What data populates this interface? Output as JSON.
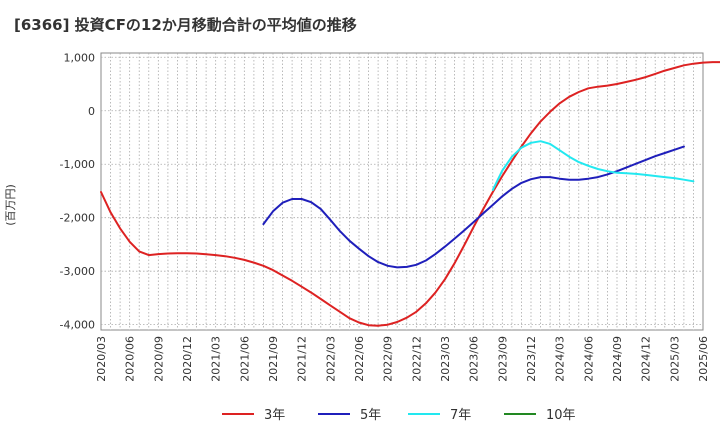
{
  "chart_data": {
    "type": "line",
    "title": "[6366]  投資CFの12か月移動合計の平均値の推移",
    "ylabel": "(百万円)",
    "xlabel": "",
    "ylim": [
      -4100,
      1080
    ],
    "yticks": [
      1000,
      0,
      -1000,
      -2000,
      -3000,
      -4000
    ],
    "ytick_labels": [
      "1,000",
      "0",
      "-1,000",
      "-2,000",
      "-3,000",
      "-4,000"
    ],
    "x_start": "2020/03",
    "x_end": "2025/06",
    "xtick_labels": [
      "2020/03",
      "2020/06",
      "2020/09",
      "2020/12",
      "2021/03",
      "2021/06",
      "2021/09",
      "2021/12",
      "2022/03",
      "2022/06",
      "2022/09",
      "2022/12",
      "2023/03",
      "2023/06",
      "2023/09",
      "2023/12",
      "2024/03",
      "2024/06",
      "2024/09",
      "2024/12",
      "2025/03",
      "2025/06"
    ],
    "grid": true,
    "legend_position": "bottom",
    "series": [
      {
        "name": "3年",
        "color": "#dd2222",
        "start": "2020/03",
        "values": [
          -1520,
          -1900,
          -2200,
          -2450,
          -2630,
          -2700,
          -2680,
          -2670,
          -2665,
          -2665,
          -2670,
          -2685,
          -2700,
          -2720,
          -2750,
          -2790,
          -2840,
          -2900,
          -2980,
          -3080,
          -3180,
          -3290,
          -3400,
          -3520,
          -3640,
          -3760,
          -3880,
          -3960,
          -4010,
          -4020,
          -4000,
          -3950,
          -3870,
          -3760,
          -3600,
          -3400,
          -3150,
          -2850,
          -2520,
          -2170,
          -1840,
          -1520,
          -1220,
          -940,
          -670,
          -420,
          -200,
          -20,
          140,
          260,
          350,
          420,
          450,
          470,
          500,
          540,
          580,
          630,
          690,
          750,
          800,
          850,
          880,
          900,
          910,
          910,
          900
        ]
      },
      {
        "name": "5年",
        "color": "#1f1fbb",
        "start": "2021/08",
        "values": [
          -2120,
          -1880,
          -1720,
          -1650,
          -1650,
          -1710,
          -1840,
          -2040,
          -2250,
          -2430,
          -2580,
          -2720,
          -2830,
          -2900,
          -2930,
          -2920,
          -2880,
          -2800,
          -2680,
          -2540,
          -2390,
          -2240,
          -2080,
          -1920,
          -1760,
          -1600,
          -1460,
          -1350,
          -1280,
          -1240,
          -1240,
          -1270,
          -1290,
          -1290,
          -1270,
          -1240,
          -1190,
          -1130,
          -1060,
          -990,
          -920,
          -850,
          -790,
          -730,
          -670
        ]
      },
      {
        "name": "7年",
        "color": "#22e8f0",
        "start": "2023/08",
        "values": [
          -1480,
          -1120,
          -860,
          -690,
          -600,
          -570,
          -620,
          -740,
          -860,
          -960,
          -1030,
          -1090,
          -1130,
          -1160,
          -1170,
          -1180,
          -1200,
          -1220,
          -1240,
          -1260,
          -1290,
          -1320
        ]
      },
      {
        "name": "10年",
        "color": "#228822",
        "start": "2025/03",
        "values": []
      }
    ]
  }
}
